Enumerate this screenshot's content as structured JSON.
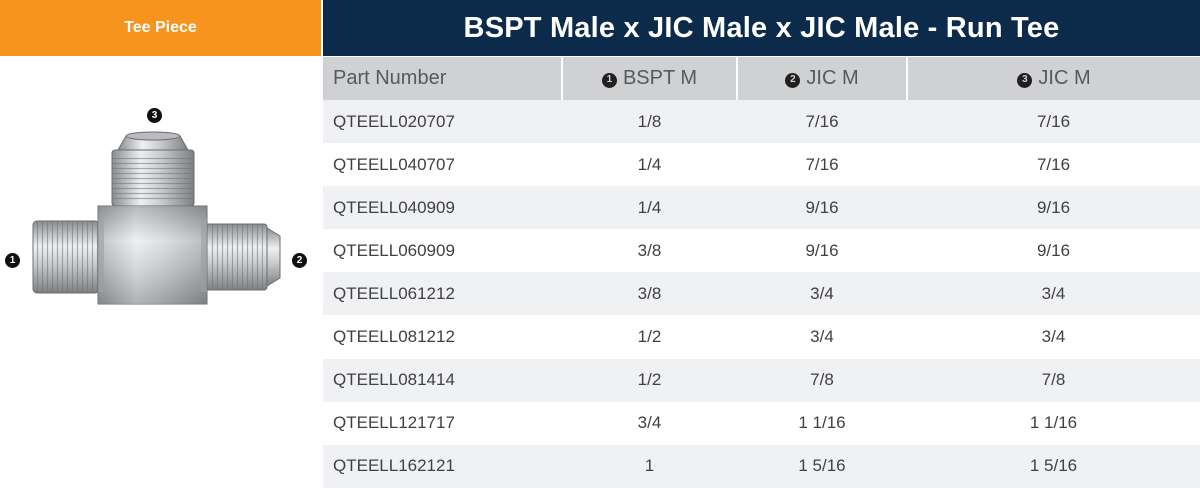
{
  "left_tab": {
    "label": "Tee Piece"
  },
  "banner": {
    "title": "BSPT Male x JIC Male x JIC Male - Run Tee"
  },
  "product": {
    "callouts": [
      "❸",
      "❶",
      "❷"
    ]
  },
  "table": {
    "headers": [
      {
        "num": "",
        "label": "Part Number"
      },
      {
        "num": "1",
        "label": "BSPT M"
      },
      {
        "num": "2",
        "label": "JIC M"
      },
      {
        "num": "3",
        "label": "JIC M"
      }
    ],
    "rows": [
      [
        "QTEELL020707",
        "1/8",
        "7/16",
        "7/16"
      ],
      [
        "QTEELL040707",
        "1/4",
        "7/16",
        "7/16"
      ],
      [
        "QTEELL040909",
        "1/4",
        "9/16",
        "9/16"
      ],
      [
        "QTEELL060909",
        "3/8",
        "9/16",
        "9/16"
      ],
      [
        "QTEELL061212",
        "3/8",
        "3/4",
        "3/4"
      ],
      [
        "QTEELL081212",
        "1/2",
        "3/4",
        "3/4"
      ],
      [
        "QTEELL081414",
        "1/2",
        "7/8",
        "7/8"
      ],
      [
        "QTEELL121717",
        "3/4",
        "1 1/16",
        "1 1/16"
      ],
      [
        "QTEELL162121",
        "1",
        "1 5/16",
        "1 5/16"
      ]
    ]
  },
  "colors": {
    "orange": "#f7941d",
    "navy": "#0c2b4a",
    "header_gray": "#d0d1d3",
    "stripe": "#f0f1f2"
  }
}
